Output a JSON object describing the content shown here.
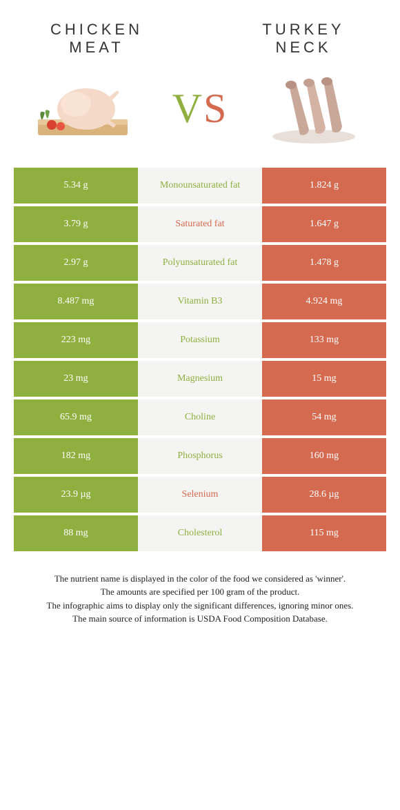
{
  "header": {
    "left_line1": "CHICKEN",
    "left_line2": "MEAT",
    "right_line1": "TURKEY",
    "right_line2": "NECK"
  },
  "vs": {
    "v": "V",
    "s": "S"
  },
  "colors": {
    "left": "#8fb03e",
    "right": "#d46a4f",
    "mid_bg": "#f4f4f2",
    "text_on_color": "#ffffff"
  },
  "rows": [
    {
      "left": "5.34 g",
      "label": "Monounsaturated fat",
      "right": "1.824 g",
      "winner": "left"
    },
    {
      "left": "3.79 g",
      "label": "Saturated fat",
      "right": "1.647 g",
      "winner": "right"
    },
    {
      "left": "2.97 g",
      "label": "Polyunsaturated fat",
      "right": "1.478 g",
      "winner": "left"
    },
    {
      "left": "8.487 mg",
      "label": "Vitamin B3",
      "right": "4.924 mg",
      "winner": "left"
    },
    {
      "left": "223 mg",
      "label": "Potassium",
      "right": "133 mg",
      "winner": "left"
    },
    {
      "left": "23 mg",
      "label": "Magnesium",
      "right": "15 mg",
      "winner": "left"
    },
    {
      "left": "65.9 mg",
      "label": "Choline",
      "right": "54 mg",
      "winner": "left"
    },
    {
      "left": "182 mg",
      "label": "Phosphorus",
      "right": "160 mg",
      "winner": "left"
    },
    {
      "left": "23.9 µg",
      "label": "Selenium",
      "right": "28.6 µg",
      "winner": "right"
    },
    {
      "left": "88 mg",
      "label": "Cholesterol",
      "right": "115 mg",
      "winner": "left"
    }
  ],
  "footer": {
    "line1": "The nutrient name is displayed in the color of the food we considered as 'winner'.",
    "line2": "The amounts are specified per 100 gram of the product.",
    "line3": "The infographic aims to display only the significant differences, ignoring minor ones.",
    "line4": "The main source of information is USDA Food Composition Database."
  }
}
